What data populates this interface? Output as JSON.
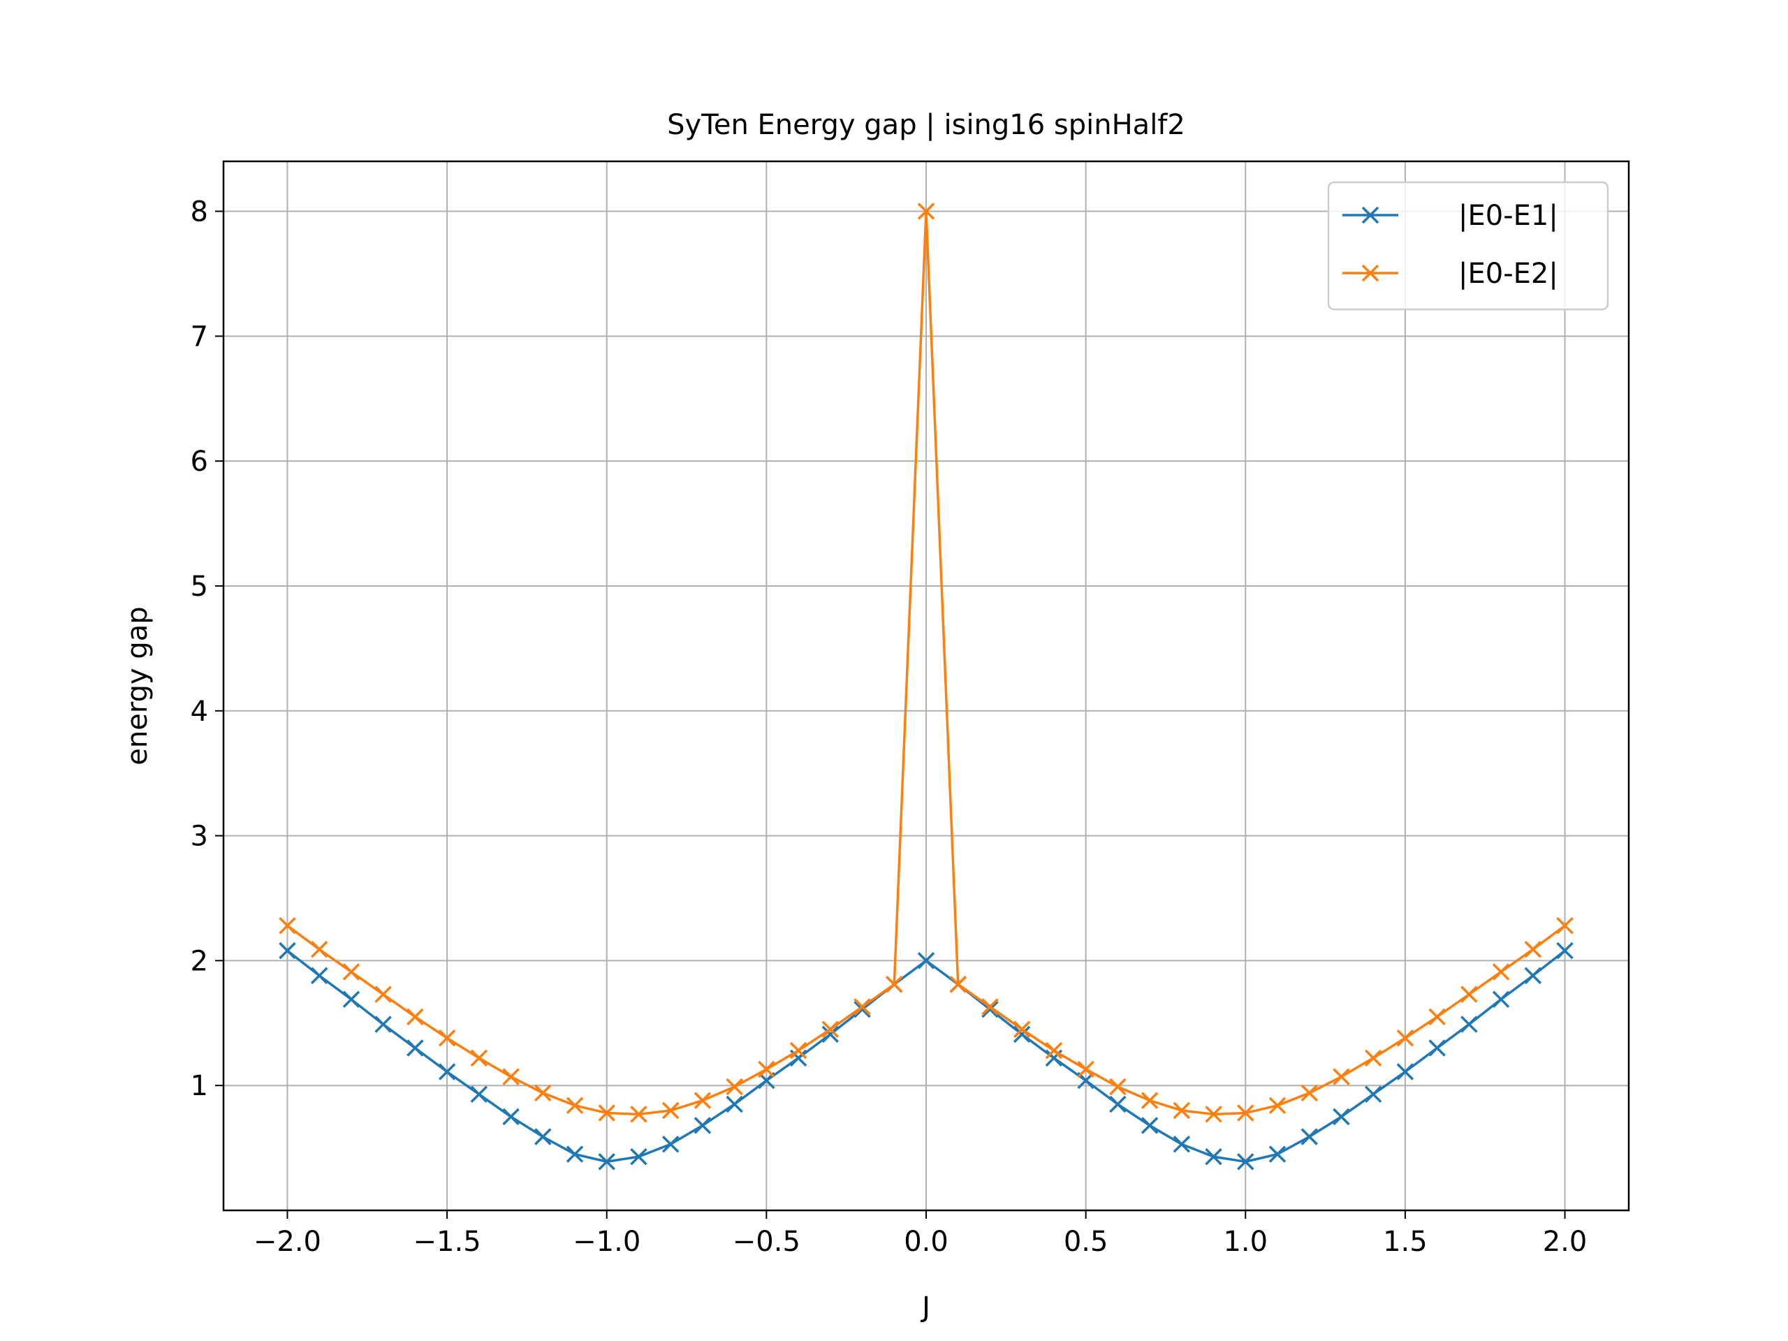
{
  "chart_data": {
    "type": "line",
    "title": "SyTen Energy gap | ising16 spinHalf2",
    "xlabel": "J",
    "ylabel": "energy gap",
    "xlim": [
      -2.2,
      2.2
    ],
    "ylim": [
      0.0,
      8.4
    ],
    "x_ticks": [
      -2.0,
      -1.5,
      -1.0,
      -0.5,
      0.0,
      0.5,
      1.0,
      1.5,
      2.0
    ],
    "x_tick_labels": [
      "−2.0",
      "−1.5",
      "−1.0",
      "−0.5",
      "0.0",
      "0.5",
      "1.0",
      "1.5",
      "2.0"
    ],
    "y_ticks": [
      1,
      2,
      3,
      4,
      5,
      6,
      7,
      8
    ],
    "y_tick_labels": [
      "1",
      "2",
      "3",
      "4",
      "5",
      "6",
      "7",
      "8"
    ],
    "grid": true,
    "legend_position": "top-right",
    "x": [
      -2.0,
      -1.9,
      -1.8,
      -1.7,
      -1.6,
      -1.5,
      -1.4,
      -1.3,
      -1.2,
      -1.1,
      -1.0,
      -0.9,
      -0.8,
      -0.7,
      -0.6,
      -0.5,
      -0.4,
      -0.3,
      -0.2,
      -0.1,
      0.0,
      0.1,
      0.2,
      0.3,
      0.4,
      0.5,
      0.6,
      0.7,
      0.8,
      0.9,
      1.0,
      1.1,
      1.2,
      1.3,
      1.4,
      1.5,
      1.6,
      1.7,
      1.8,
      1.9,
      2.0
    ],
    "series": [
      {
        "name": "|E0-E1|",
        "color": "#1f77b4",
        "marker": "x",
        "values": [
          2.08,
          1.88,
          1.69,
          1.49,
          1.3,
          1.11,
          0.93,
          0.75,
          0.59,
          0.45,
          0.39,
          0.43,
          0.53,
          0.68,
          0.85,
          1.04,
          1.22,
          1.41,
          1.61,
          1.81,
          2.0,
          1.81,
          1.61,
          1.41,
          1.22,
          1.04,
          0.85,
          0.68,
          0.53,
          0.43,
          0.39,
          0.45,
          0.59,
          0.75,
          0.93,
          1.11,
          1.3,
          1.49,
          1.69,
          1.88,
          2.08
        ]
      },
      {
        "name": "|E0-E2|",
        "color": "#ff7f0e",
        "marker": "x",
        "values": [
          2.28,
          2.09,
          1.91,
          1.73,
          1.55,
          1.38,
          1.22,
          1.07,
          0.94,
          0.84,
          0.78,
          0.77,
          0.8,
          0.88,
          0.99,
          1.13,
          1.28,
          1.45,
          1.63,
          1.81,
          8.0,
          1.81,
          1.63,
          1.45,
          1.28,
          1.13,
          0.99,
          0.88,
          0.8,
          0.77,
          0.78,
          0.84,
          0.94,
          1.07,
          1.22,
          1.38,
          1.55,
          1.73,
          1.91,
          2.09,
          2.28
        ]
      }
    ]
  }
}
